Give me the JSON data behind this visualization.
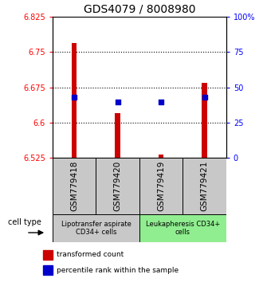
{
  "title": "GDS4079 / 8008980",
  "samples": [
    "GSM779418",
    "GSM779420",
    "GSM779419",
    "GSM779421"
  ],
  "red_values": [
    6.77,
    6.62,
    6.532,
    6.685
  ],
  "blue_values": [
    6.655,
    6.644,
    6.644,
    6.655
  ],
  "ylim_left": [
    6.525,
    6.825
  ],
  "ylim_right": [
    0,
    100
  ],
  "left_ticks": [
    6.525,
    6.6,
    6.675,
    6.75,
    6.825
  ],
  "right_ticks": [
    0,
    25,
    50,
    75,
    100
  ],
  "left_tick_labels": [
    "6.525",
    "6.6",
    "6.675",
    "6.75",
    "6.825"
  ],
  "right_tick_labels": [
    "0",
    "25",
    "50",
    "75",
    "100%"
  ],
  "dotted_lines": [
    6.6,
    6.675,
    6.75
  ],
  "bar_width": 0.12,
  "bar_color": "#cc0000",
  "dot_color": "#0000cc",
  "cell_groups": [
    {
      "label": "Lipotransfer aspirate\nCD34+ cells",
      "samples": [
        0,
        1
      ],
      "color": "#c8c8c8"
    },
    {
      "label": "Leukapheresis CD34+\ncells",
      "samples": [
        2,
        3
      ],
      "color": "#90ee90"
    }
  ],
  "cell_type_label": "cell type",
  "legend_red": "transformed count",
  "legend_blue": "percentile rank within the sample",
  "title_fontsize": 10,
  "tick_fontsize": 7,
  "sample_fontsize": 7.5,
  "cell_fontsize": 6,
  "legend_fontsize": 6.5
}
